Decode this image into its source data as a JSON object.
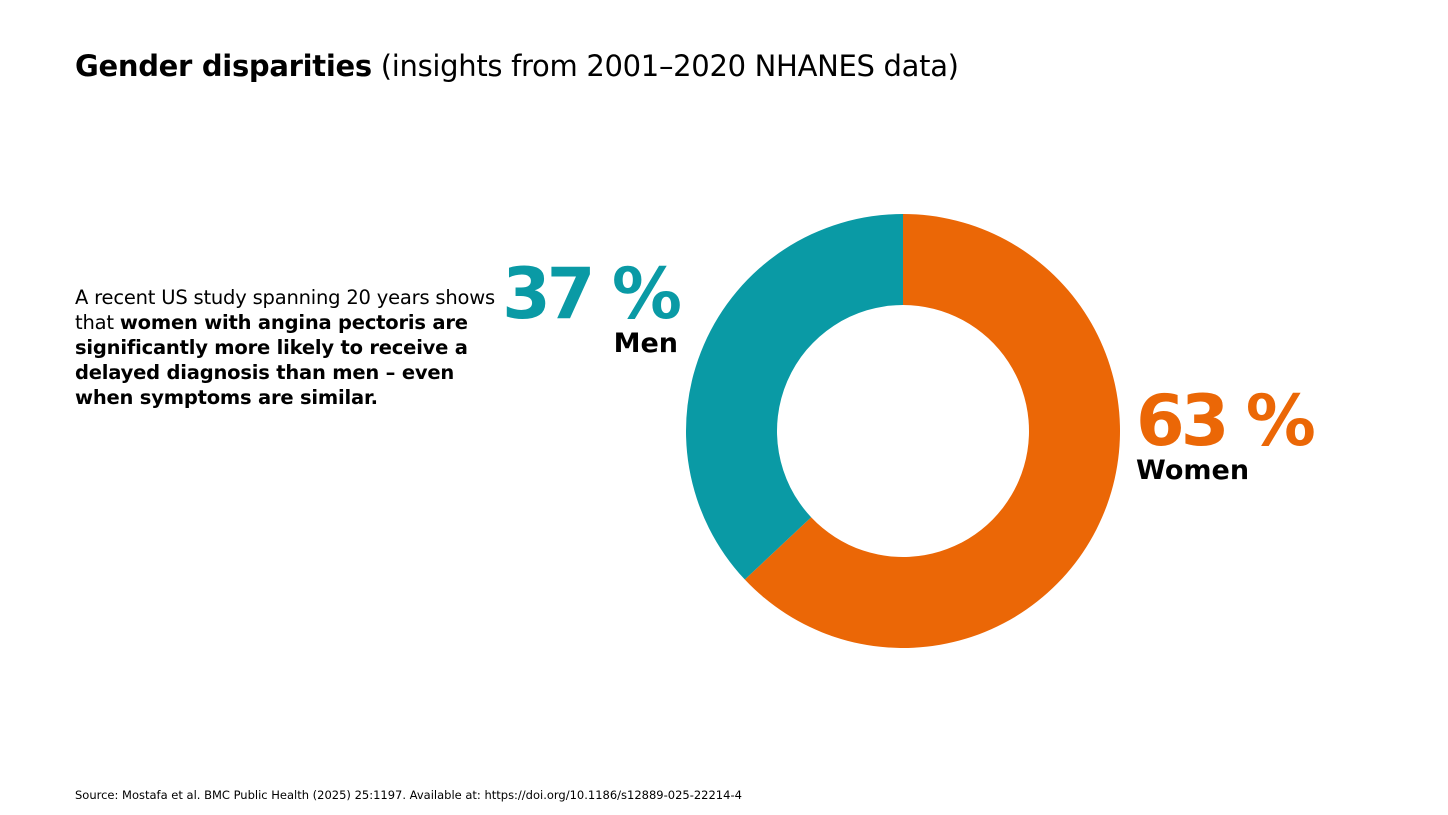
{
  "header": {
    "title_bold": "Gender disparities",
    "title_rest": " (insights from 2001–2020 NHANES data)"
  },
  "description": {
    "plain": "A recent US study spanning 20 years shows that ",
    "bold": "women with angina pectoris are significantly more likely to receive a delayed diagnosis than men – even when symptoms are similar."
  },
  "chart_data": {
    "type": "pie",
    "variant": "donut",
    "categories": [
      "Men",
      "Women"
    ],
    "values": [
      37,
      63
    ],
    "value_labels": [
      "37 %",
      "63 %"
    ],
    "unit": "%",
    "colors": [
      "#0A9AA5",
      "#EB6706"
    ]
  },
  "footer": {
    "source": "Source: Mostafa et al. BMC Public Health (2025) 25:1197. Available at: https://doi.org/10.1186/s12889-025-22214-4"
  }
}
